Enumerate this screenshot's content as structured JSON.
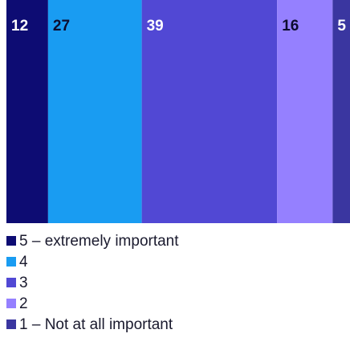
{
  "chart_data": {
    "type": "bar",
    "orientation": "horizontal-stacked",
    "total": 99,
    "series": [
      {
        "name": "5 – extremely important",
        "value": 12,
        "label": "12",
        "color": "#0d0c73",
        "label_color": "#ffffff"
      },
      {
        "name": "4",
        "value": 27,
        "label": "27",
        "color": "#199cf2",
        "label_color": "#0d0c2e"
      },
      {
        "name": "3",
        "value": 39,
        "label": "39",
        "color": "#5148d4",
        "label_color": "#ffffff"
      },
      {
        "name": "2",
        "value": 16,
        "label": "16",
        "color": "#9580ff",
        "label_color": "#0d0c2e"
      },
      {
        "name": "1 – Not at all important",
        "value": 5,
        "label": "5",
        "color": "#3a36a0",
        "label_color": "#ffffff"
      }
    ],
    "legend_position": "bottom-left",
    "title": "",
    "xlabel": "",
    "ylabel": "",
    "grid": false
  }
}
